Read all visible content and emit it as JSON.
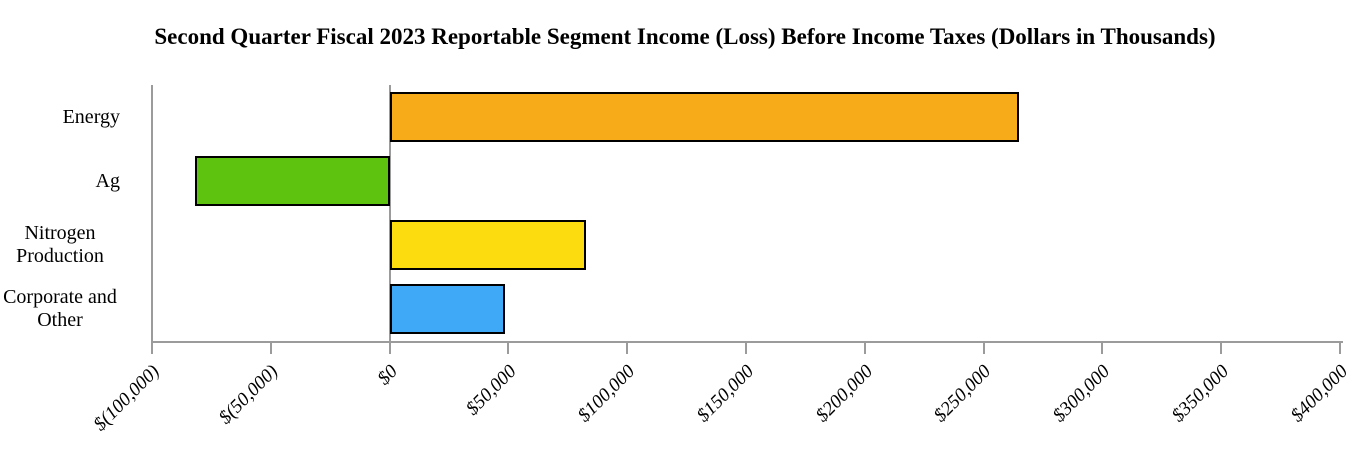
{
  "chart_data": {
    "type": "bar",
    "orientation": "horizontal",
    "title": "Second Quarter Fiscal 2023 Reportable Segment Income (Loss) Before Income Taxes (Dollars in Thousands)",
    "categories": [
      "Energy",
      "Ag",
      "Nitrogen Production",
      "Corporate and Other"
    ],
    "values": [
      265000,
      -82000,
      82500,
      48500
    ],
    "bar_colors": [
      "#F8AB18",
      "#5EC30E",
      "#FDDC0F",
      "#3FA9F8"
    ],
    "bar_border_color": "#000000",
    "axis_color": "#9B9B9B",
    "xlim": [
      -100000,
      400000
    ],
    "tick_interval": 50000,
    "tick_labels": [
      "$(100,000)",
      "$(50,000)",
      "$0",
      "$50,000",
      "$100,000",
      "$150,000",
      "$200,000",
      "$250,000",
      "$300,000",
      "$350,000",
      "$400,000"
    ],
    "xlabel": "",
    "ylabel": "",
    "grid": false,
    "legend": "none"
  }
}
